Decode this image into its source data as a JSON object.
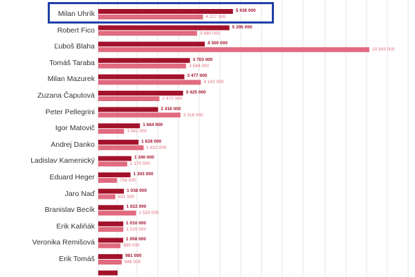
{
  "colors": {
    "primary": "#a3122b",
    "secondary": "#e06a7f",
    "highlight": "#1f3fa8",
    "grid": "#e6e6e6"
  },
  "chart_data": {
    "type": "bar",
    "orientation": "horizontal",
    "xlim": [
      0,
      11000000
    ],
    "highlighted_category": "Milan Uhrík",
    "categories": [
      "Milan Uhrík",
      "Robert Fico",
      "Ľuboš Blaha",
      "Tomáš Taraba",
      "Milan Mazurek",
      "Zuzana Čaputová",
      "Peter Pellegrini",
      "Igor Matovič",
      "Andrej Danko",
      "Ladislav Kamenický",
      "Eduard Heger",
      "Jaro Naď",
      "Branislav Becík",
      "Erik Kaliňák",
      "Veronika Remišová",
      "Erik Tomáš"
    ],
    "series": [
      {
        "name": "primary",
        "values": [
          5438000,
          5295000,
          4300000,
          3703000,
          3477000,
          3425000,
          2416000,
          1684000,
          1628000,
          1340000,
          1303000,
          1038000,
          1022000,
          1010000,
          1008000,
          981000
        ],
        "labels": [
          "5 438 000",
          "5 295 000",
          "4 300 000",
          "3 703 000",
          "3 477 000",
          "3 425 000",
          "2 416 000",
          "1 684 000",
          "1 628 000",
          "1 340 000",
          "1 303 000",
          "1 038 000",
          "1 022 000",
          "1 010 000",
          "1 008 000",
          "981 000"
        ]
      },
      {
        "name": "secondary",
        "values": [
          4227000,
          3990000,
          10943000,
          3548000,
          4143000,
          2470000,
          3318000,
          1042000,
          1832000,
          1170000,
          758000,
          691000,
          1528000,
          1015000,
          899000,
          948000
        ],
        "labels": [
          "4 227 000",
          "3 990 000",
          "10 943 000",
          "3 548 000",
          "4 143 000",
          "2 470 000",
          "3 318 000",
          "1 042 000",
          "1 832 000",
          "1 170 000",
          "758 000",
          "691 000",
          "1 528 000",
          "1 015 000",
          "899 000",
          "948 000"
        ]
      }
    ]
  }
}
